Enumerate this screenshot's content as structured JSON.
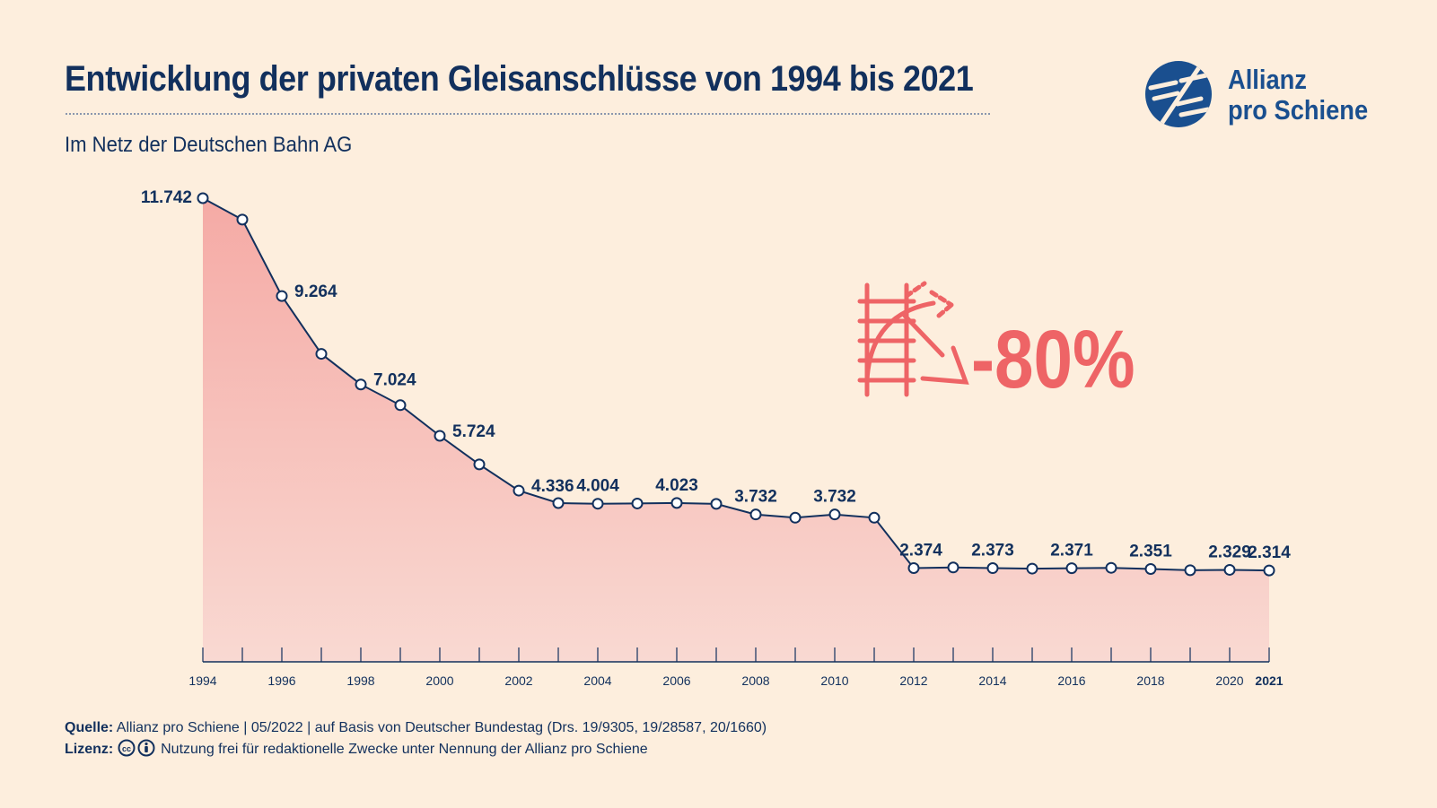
{
  "title": "Entwicklung der privaten Gleisanschlüsse von 1994 bis 2021",
  "subtitle": "Im Netz der Deutschen Bahn AG",
  "logo": {
    "line1": "Allianz",
    "line2": "pro Schiene"
  },
  "callout": {
    "text": "-80%",
    "icon": "railway-track-decline-icon"
  },
  "footer": {
    "source_label": "Quelle:",
    "source_text": "Allianz pro Schiene | 05/2022 | auf Basis von Deutscher Bundestag (Drs. 19/9305, 19/28587, 20/1660)",
    "license_label": "Lizenz:",
    "license_text": "Nutzung frei für redaktionelle Zwecke unter Nennung der Allianz pro Schiene"
  },
  "colors": {
    "text": "#12305d",
    "accent": "#ee6466",
    "area_top": "#f5aaa5",
    "area_bottom": "#f9d9d2",
    "background": "#fdeedd"
  },
  "chart_data": {
    "type": "area",
    "x": [
      1994,
      1995,
      1996,
      1997,
      1998,
      1999,
      2000,
      2001,
      2002,
      2003,
      2004,
      2005,
      2006,
      2007,
      2008,
      2009,
      2010,
      2011,
      2012,
      2013,
      2014,
      2015,
      2016,
      2017,
      2018,
      2019,
      2020,
      2021
    ],
    "values": [
      11742,
      11200,
      9264,
      7800,
      7024,
      6500,
      5724,
      5000,
      4336,
      4020,
      4004,
      4010,
      4023,
      4000,
      3732,
      3650,
      3732,
      3650,
      2374,
      2390,
      2373,
      2360,
      2371,
      2380,
      2351,
      2320,
      2329,
      2314
    ],
    "data_labels": [
      {
        "x": 1994,
        "text": "11.742"
      },
      {
        "x": 1996,
        "text": "9.264"
      },
      {
        "x": 1998,
        "text": "7.024"
      },
      {
        "x": 2000,
        "text": "5.724"
      },
      {
        "x": 2002,
        "text": "4.336"
      },
      {
        "x": 2004,
        "text": "4.004"
      },
      {
        "x": 2006,
        "text": "4.023"
      },
      {
        "x": 2008,
        "text": "3.732"
      },
      {
        "x": 2010,
        "text": "3.732"
      },
      {
        "x": 2012,
        "text": "2.374"
      },
      {
        "x": 2014,
        "text": "2.373"
      },
      {
        "x": 2016,
        "text": "2.371"
      },
      {
        "x": 2018,
        "text": "2.351"
      },
      {
        "x": 2020,
        "text": "2.329"
      },
      {
        "x": 2021,
        "text": "2.314"
      }
    ],
    "x_tick_labels": [
      "1994",
      "1996",
      "1998",
      "2000",
      "2002",
      "2004",
      "2006",
      "2008",
      "2010",
      "2012",
      "2014",
      "2016",
      "2018",
      "2020",
      "2021"
    ],
    "xlim": [
      1994,
      2021
    ],
    "ylim": [
      0,
      11742
    ],
    "grid": false,
    "title": "Entwicklung der privaten Gleisanschlüsse von 1994 bis 2021",
    "xlabel": "",
    "ylabel": ""
  }
}
